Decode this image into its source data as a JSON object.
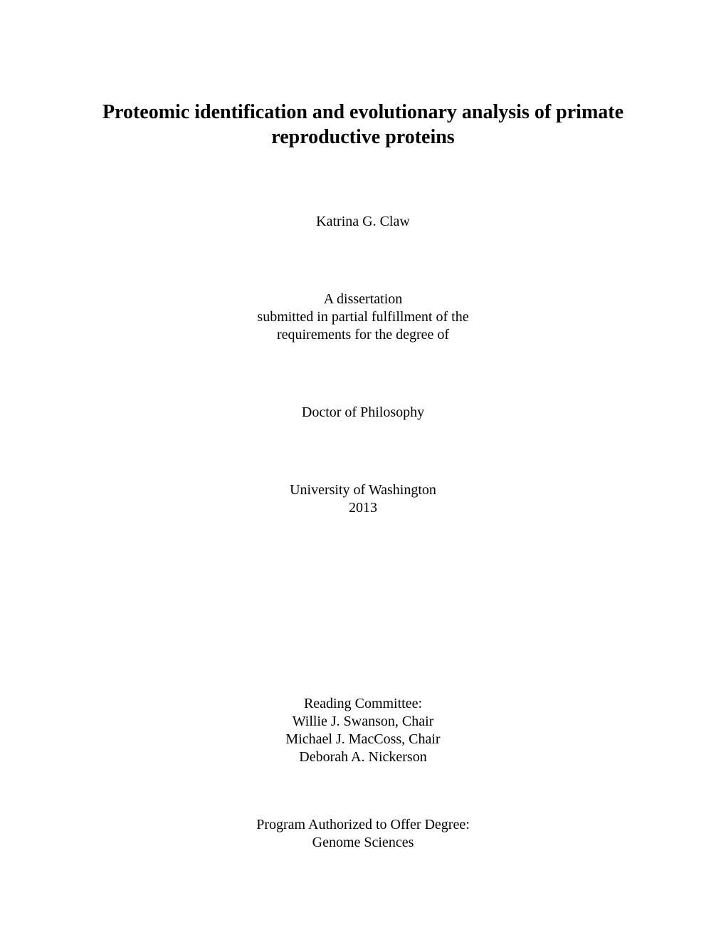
{
  "title": "Proteomic identification and evolutionary analysis of primate reproductive proteins",
  "author": "Katrina G. Claw",
  "submission": {
    "line1": "A dissertation",
    "line2": "submitted in partial fulfillment of the",
    "line3": "requirements for the degree of"
  },
  "degree": "Doctor of Philosophy",
  "institution": {
    "name": "University of Washington",
    "year": "2013"
  },
  "committee": {
    "header": "Reading Committee:",
    "member1": "Willie J. Swanson, Chair",
    "member2": "Michael J. MacCoss, Chair",
    "member3": "Deborah A. Nickerson"
  },
  "program": {
    "header": "Program Authorized to Offer Degree:",
    "name": "Genome Sciences"
  }
}
